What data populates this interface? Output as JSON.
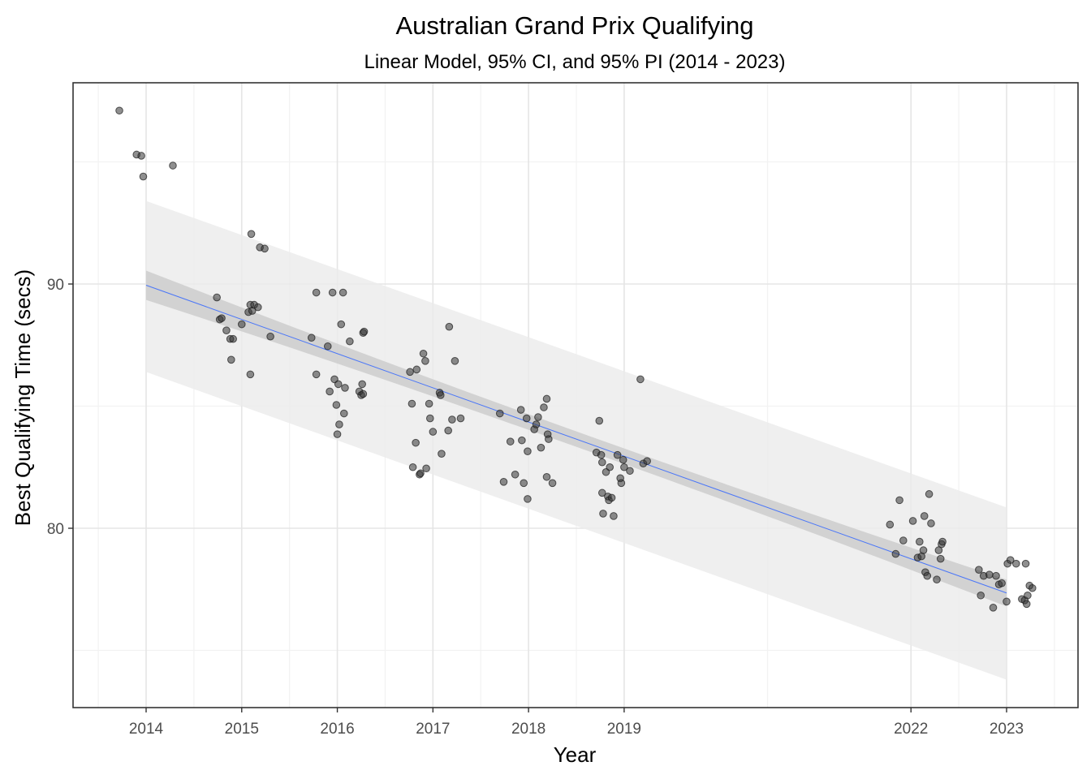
{
  "chart_data": {
    "type": "scatter",
    "title": "Australian Grand Prix Qualifying",
    "subtitle": "Linear Model, 95% CI, and 95% PI (2014 - 2023)",
    "xlabel": "Year",
    "ylabel": "Best Qualifying Time (secs)",
    "x_tick_labels": [
      "2014",
      "2015",
      "2016",
      "2017",
      "2018",
      "2019",
      "2022",
      "2023"
    ],
    "x_ticks": [
      2014,
      2015,
      2016,
      2017,
      2018,
      2019,
      2022,
      2023
    ],
    "y_ticks": [
      80,
      90
    ],
    "y_tick_labels": [
      "80",
      "90"
    ],
    "xlim": [
      2013.3,
      2023.5
    ],
    "ylim": [
      72.8,
      97.6
    ],
    "grid": true,
    "point_color": "#333333",
    "fit_line_color": "#3366ff",
    "ci_fill": "#c8c8c8",
    "pi_fill": "#ebebeb",
    "fit": {
      "x": [
        2014,
        2023
      ],
      "y": [
        89.95,
        77.35
      ]
    },
    "confidence_band": {
      "x": [
        2014,
        2023
      ],
      "lower": [
        89.3,
        76.8
      ],
      "upper": [
        90.5,
        77.9
      ]
    },
    "prediction_band": {
      "x": [
        2014,
        2023
      ],
      "lower": [
        86.4,
        73.8
      ],
      "upper": [
        93.4,
        80.85
      ]
    },
    "points": [
      [
        2013.72,
        97.1
      ],
      [
        2013.9,
        95.3
      ],
      [
        2013.95,
        95.25
      ],
      [
        2013.97,
        94.4
      ],
      [
        2014.28,
        94.85
      ],
      [
        2014.74,
        89.45
      ],
      [
        2014.77,
        88.55
      ],
      [
        2014.79,
        88.6
      ],
      [
        2014.84,
        88.1
      ],
      [
        2014.88,
        87.75
      ],
      [
        2014.89,
        86.9
      ],
      [
        2014.91,
        87.75
      ],
      [
        2015.0,
        88.35
      ],
      [
        2015.07,
        88.85
      ],
      [
        2015.09,
        89.15
      ],
      [
        2015.1,
        92.05
      ],
      [
        2015.11,
        88.9
      ],
      [
        2015.13,
        89.15
      ],
      [
        2015.09,
        86.3
      ],
      [
        2015.17,
        89.05
      ],
      [
        2015.19,
        91.5
      ],
      [
        2015.24,
        91.45
      ],
      [
        2015.3,
        87.85
      ],
      [
        2015.73,
        87.8
      ],
      [
        2015.78,
        89.65
      ],
      [
        2015.78,
        86.3
      ],
      [
        2015.9,
        87.45
      ],
      [
        2015.92,
        85.6
      ],
      [
        2015.95,
        89.65
      ],
      [
        2015.97,
        86.1
      ],
      [
        2015.99,
        85.05
      ],
      [
        2016.0,
        83.85
      ],
      [
        2016.01,
        85.9
      ],
      [
        2016.02,
        84.25
      ],
      [
        2016.04,
        88.35
      ],
      [
        2016.06,
        89.65
      ],
      [
        2016.07,
        84.7
      ],
      [
        2016.08,
        85.75
      ],
      [
        2016.13,
        87.65
      ],
      [
        2016.23,
        85.6
      ],
      [
        2016.25,
        85.45
      ],
      [
        2016.26,
        85.9
      ],
      [
        2016.27,
        88.0
      ],
      [
        2016.28,
        88.05
      ],
      [
        2016.27,
        85.5
      ],
      [
        2016.76,
        86.4
      ],
      [
        2016.78,
        85.1
      ],
      [
        2016.79,
        82.5
      ],
      [
        2016.82,
        83.5
      ],
      [
        2016.83,
        86.5
      ],
      [
        2016.86,
        82.2
      ],
      [
        2016.87,
        82.25
      ],
      [
        2016.9,
        87.15
      ],
      [
        2016.92,
        86.85
      ],
      [
        2016.93,
        82.45
      ],
      [
        2016.96,
        85.1
      ],
      [
        2016.97,
        84.5
      ],
      [
        2017.0,
        83.95
      ],
      [
        2017.07,
        85.55
      ],
      [
        2017.08,
        85.45
      ],
      [
        2017.09,
        83.05
      ],
      [
        2017.16,
        84.0
      ],
      [
        2017.17,
        88.25
      ],
      [
        2017.2,
        84.45
      ],
      [
        2017.23,
        86.85
      ],
      [
        2017.29,
        84.5
      ],
      [
        2017.7,
        84.7
      ],
      [
        2017.74,
        81.9
      ],
      [
        2017.81,
        83.55
      ],
      [
        2017.86,
        82.2
      ],
      [
        2017.92,
        84.85
      ],
      [
        2017.93,
        83.6
      ],
      [
        2017.95,
        81.85
      ],
      [
        2017.98,
        84.5
      ],
      [
        2017.99,
        83.15
      ],
      [
        2017.99,
        81.2
      ],
      [
        2018.06,
        84.05
      ],
      [
        2018.08,
        84.25
      ],
      [
        2018.1,
        84.55
      ],
      [
        2018.13,
        83.3
      ],
      [
        2018.16,
        84.95
      ],
      [
        2018.19,
        85.3
      ],
      [
        2018.2,
        83.85
      ],
      [
        2018.21,
        83.65
      ],
      [
        2018.19,
        82.1
      ],
      [
        2018.25,
        81.85
      ],
      [
        2018.71,
        83.1
      ],
      [
        2018.74,
        84.4
      ],
      [
        2018.76,
        83.0
      ],
      [
        2018.77,
        82.7
      ],
      [
        2018.77,
        81.45
      ],
      [
        2018.78,
        80.6
      ],
      [
        2018.81,
        82.3
      ],
      [
        2018.83,
        81.3
      ],
      [
        2018.84,
        81.15
      ],
      [
        2018.85,
        82.5
      ],
      [
        2018.87,
        81.25
      ],
      [
        2018.89,
        80.5
      ],
      [
        2018.93,
        83.0
      ],
      [
        2018.96,
        82.05
      ],
      [
        2018.97,
        81.85
      ],
      [
        2018.99,
        82.8
      ],
      [
        2019.0,
        82.5
      ],
      [
        2019.06,
        82.35
      ],
      [
        2019.17,
        86.1
      ],
      [
        2019.2,
        82.65
      ],
      [
        2019.24,
        82.75
      ],
      [
        2021.78,
        80.15
      ],
      [
        2021.84,
        78.95
      ],
      [
        2021.88,
        81.15
      ],
      [
        2021.92,
        79.5
      ],
      [
        2022.02,
        80.3
      ],
      [
        2022.07,
        78.8
      ],
      [
        2022.09,
        79.45
      ],
      [
        2022.11,
        78.85
      ],
      [
        2022.13,
        79.1
      ],
      [
        2022.14,
        80.5
      ],
      [
        2022.15,
        78.2
      ],
      [
        2022.17,
        78.05
      ],
      [
        2022.19,
        81.4
      ],
      [
        2022.21,
        80.2
      ],
      [
        2022.27,
        77.9
      ],
      [
        2022.29,
        79.1
      ],
      [
        2022.31,
        78.75
      ],
      [
        2022.32,
        79.35
      ],
      [
        2022.33,
        79.45
      ],
      [
        2022.71,
        78.3
      ],
      [
        2022.73,
        77.25
      ],
      [
        2022.76,
        78.05
      ],
      [
        2022.82,
        78.1
      ],
      [
        2022.86,
        76.75
      ],
      [
        2022.89,
        78.05
      ],
      [
        2022.92,
        77.7
      ],
      [
        2022.95,
        77.75
      ],
      [
        2023.01,
        78.55
      ],
      [
        2023.04,
        78.7
      ],
      [
        2023.1,
        78.55
      ],
      [
        2023.16,
        77.1
      ],
      [
        2023.19,
        77.05
      ],
      [
        2023.2,
        78.55
      ],
      [
        2023.21,
        76.9
      ],
      [
        2023.22,
        77.25
      ],
      [
        2023.24,
        77.65
      ],
      [
        2023.27,
        77.55
      ],
      [
        2023.0,
        77.0
      ]
    ]
  }
}
